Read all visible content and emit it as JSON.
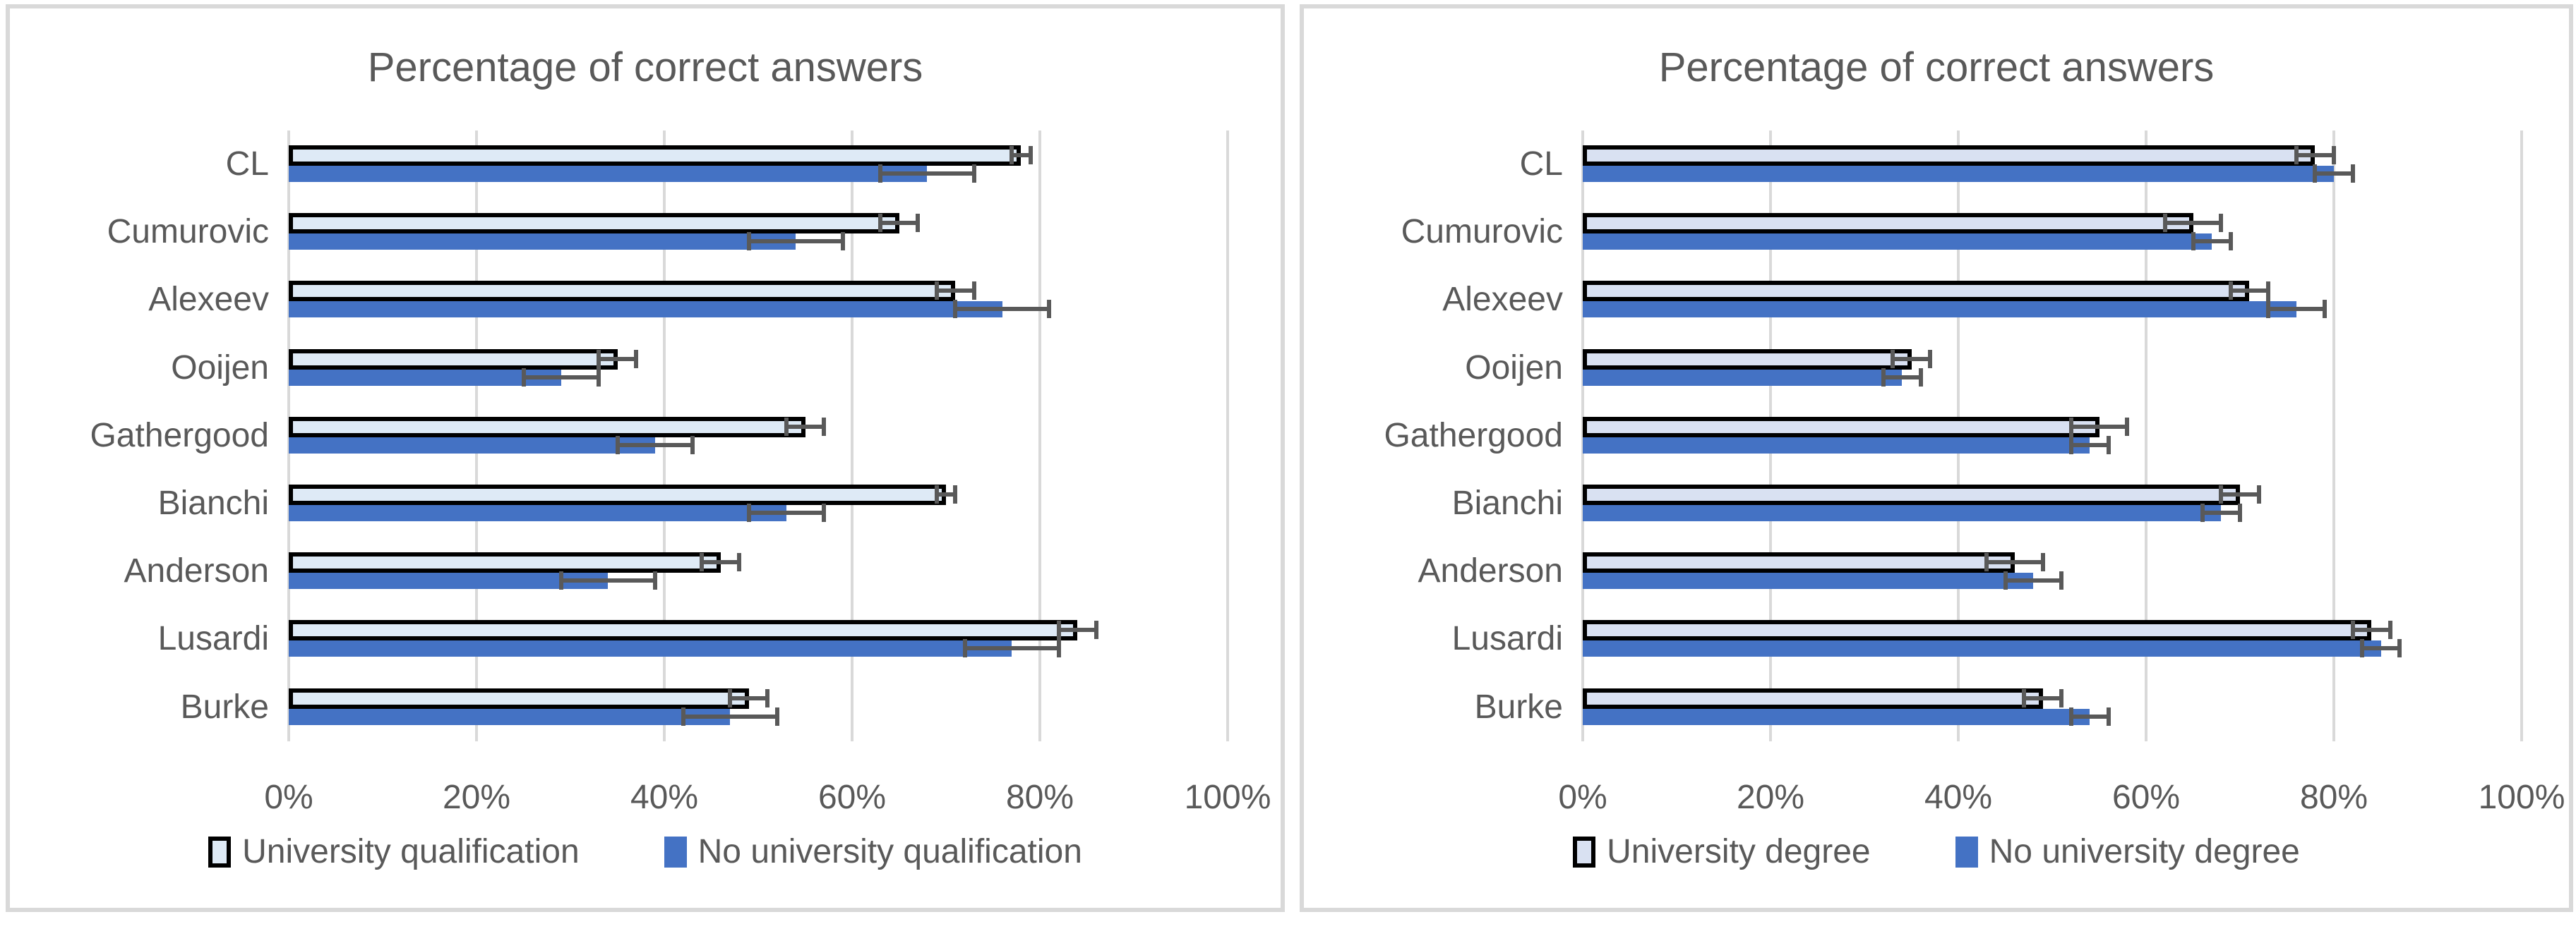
{
  "styles": {
    "background": "#FFFFFF",
    "panel_border_color": "#D9D9D9",
    "gridline_color": "#D9D9D9",
    "text_color": "#595959",
    "error_bar_color": "#595959",
    "bar_outline_color": "#000000",
    "blue_fill": "#4472C4",
    "light_fill_left": "#DEEAF6",
    "light_fill_right": "#D9E1F2"
  },
  "chart_data": [
    {
      "type": "bar",
      "orientation": "horizontal",
      "title": "Percentage of correct answers",
      "categories": [
        "CL",
        "Cumurovic",
        "Alexeev",
        "Ooijen",
        "Gathergood",
        "Bianchi",
        "Anderson",
        "Lusardi",
        "Burke"
      ],
      "x_tick_labels": [
        "0%",
        "20%",
        "40%",
        "60%",
        "80%",
        "100%"
      ],
      "xlim": [
        0,
        100
      ],
      "grid": true,
      "legend_position": "bottom",
      "series": [
        {
          "name": "University qualification",
          "fill": "#DEEAF6",
          "outline": "#000000",
          "values": [
            78,
            65,
            71,
            35,
            55,
            70,
            46,
            84,
            49
          ],
          "error_bars": [
            1,
            2,
            2,
            2,
            2,
            1,
            2,
            2,
            2
          ]
        },
        {
          "name": "No university qualification",
          "fill": "#4472C4",
          "outline": null,
          "values": [
            68,
            54,
            76,
            29,
            39,
            53,
            34,
            77,
            47
          ],
          "error_bars": [
            5,
            5,
            5,
            4,
            4,
            4,
            5,
            5,
            5
          ]
        }
      ]
    },
    {
      "type": "bar",
      "orientation": "horizontal",
      "title": "Percentage of correct answers",
      "categories": [
        "CL",
        "Cumurovic",
        "Alexeev",
        "Ooijen",
        "Gathergood",
        "Bianchi",
        "Anderson",
        "Lusardi",
        "Burke"
      ],
      "x_tick_labels": [
        "0%",
        "20%",
        "40%",
        "60%",
        "80%",
        "100%"
      ],
      "xlim": [
        0,
        100
      ],
      "grid": true,
      "legend_position": "bottom",
      "series": [
        {
          "name": "University degree",
          "fill": "#D9E1F2",
          "outline": "#000000",
          "values": [
            78,
            65,
            71,
            35,
            55,
            70,
            46,
            84,
            49
          ],
          "error_bars": [
            2,
            3,
            2,
            2,
            3,
            2,
            3,
            2,
            2
          ]
        },
        {
          "name": "No university degree",
          "fill": "#4472C4",
          "outline": null,
          "values": [
            80,
            67,
            76,
            34,
            54,
            68,
            48,
            85,
            54
          ],
          "error_bars": [
            2,
            2,
            3,
            2,
            2,
            2,
            3,
            2,
            2
          ]
        }
      ]
    }
  ]
}
